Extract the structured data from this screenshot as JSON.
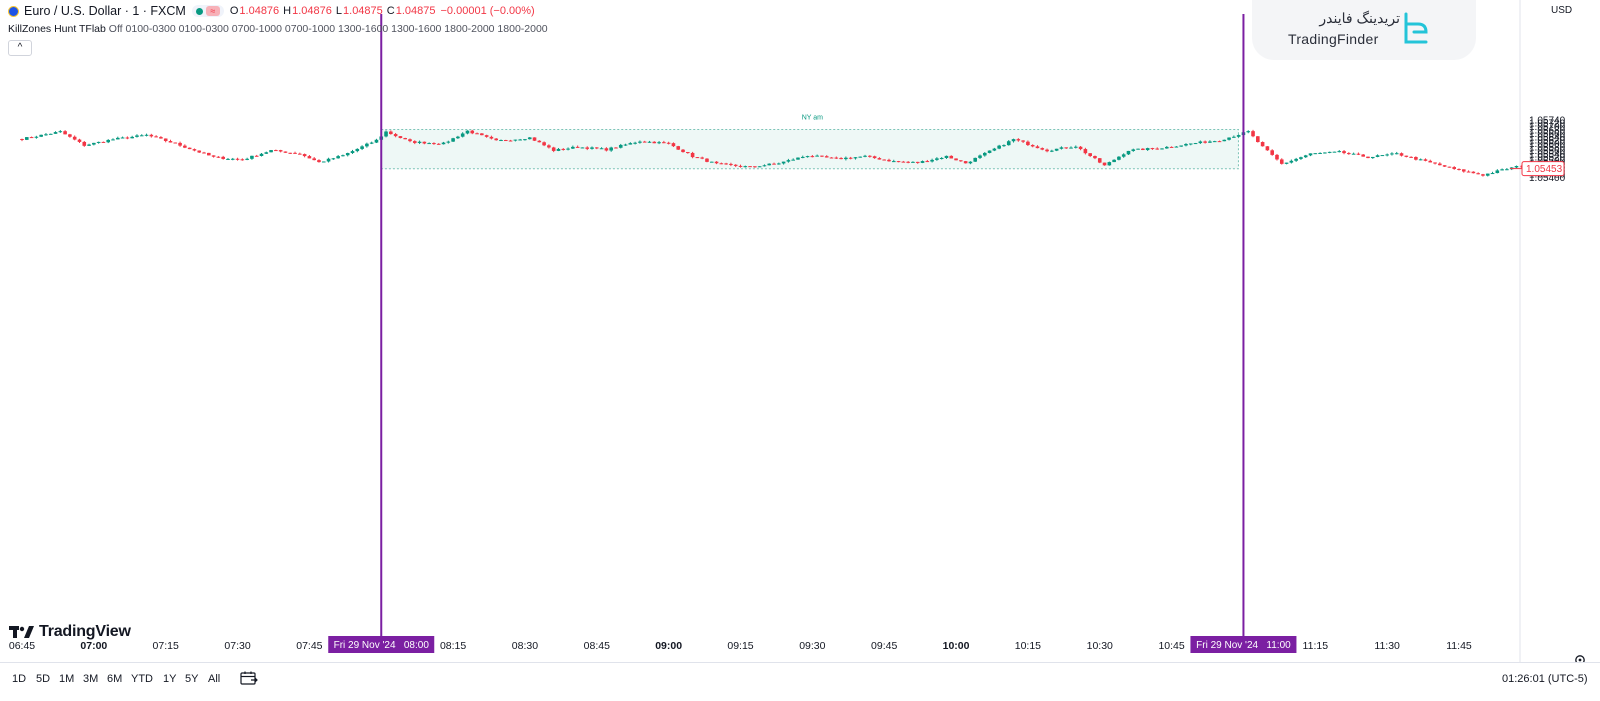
{
  "header": {
    "symbol": "Euro / U.S. Dollar · 1 · FXCM",
    "ohlc": [
      {
        "label": "O",
        "value": "1.04876"
      },
      {
        "label": "H",
        "value": "1.04876"
      },
      {
        "label": "L",
        "value": "1.04875"
      },
      {
        "label": "C",
        "value": "1.04875"
      }
    ],
    "change": "−0.00001 (−0.00%)"
  },
  "indicator": {
    "name": "KillZones Hunt TFlab",
    "params": "Off 0100-0300 0100-0300 0700-1000 0700-1000 1300-1600 1300-1600 1800-2000 1800-2000"
  },
  "brand": {
    "name_fa": "تریدینگ فایندر",
    "name_en": "TradingFinder"
  },
  "tradingview_logo": "TradingView",
  "colors": {
    "up": "#089981",
    "down": "#f23645",
    "session_line": "#7b1fa2",
    "box_fill": "#eef8f6",
    "box_border": "#7cc3b7"
  },
  "price_axis": {
    "currency": "USD",
    "labels": [
      "1.05740",
      "1.05720",
      "1.05700",
      "1.05680",
      "1.05660",
      "1.05640",
      "1.05620",
      "1.05600",
      "1.05580",
      "1.05560",
      "1.05540",
      "1.05520",
      "1.05500",
      "1.05480",
      "1.05460",
      "1.05440",
      "1.05420",
      "1.05400"
    ],
    "current_price": "1.05453"
  },
  "time_axis": {
    "labels": [
      {
        "t": "06:45",
        "bold": false
      },
      {
        "t": "07:00",
        "bold": true
      },
      {
        "t": "07:15",
        "bold": false
      },
      {
        "t": "07:30",
        "bold": false
      },
      {
        "t": "07:45",
        "bold": false
      },
      {
        "t": "08:15",
        "bold": false
      },
      {
        "t": "08:30",
        "bold": false
      },
      {
        "t": "08:45",
        "bold": false
      },
      {
        "t": "09:00",
        "bold": true
      },
      {
        "t": "09:15",
        "bold": false
      },
      {
        "t": "09:30",
        "bold": false
      },
      {
        "t": "09:45",
        "bold": false
      },
      {
        "t": "10:00",
        "bold": true
      },
      {
        "t": "10:15",
        "bold": false
      },
      {
        "t": "10:30",
        "bold": false
      },
      {
        "t": "10:45",
        "bold": false
      },
      {
        "t": "11:15",
        "bold": false
      },
      {
        "t": "11:30",
        "bold": false
      },
      {
        "t": "11:45",
        "bold": false
      }
    ],
    "session_markers": [
      "Fri 29 Nov '24   08:00",
      "Fri 29 Nov '24   11:00"
    ]
  },
  "session_box": {
    "label": "NY am",
    "high": 1.05683,
    "low": 1.05452
  },
  "timeframes": [
    "1D",
    "5D",
    "1M",
    "3M",
    "6M",
    "YTD",
    "1Y",
    "5Y",
    "All"
  ],
  "clock": "01:26:01 (UTC-5)",
  "chart_data": {
    "type": "candlestick",
    "symbol": "EURUSD",
    "interval": "1 minute",
    "x_range": [
      "06:45",
      "11:59"
    ],
    "ylim": [
      1.0539,
      1.0575
    ],
    "anchors": [
      {
        "t": "06:45",
        "p": 1.05628
      },
      {
        "t": "06:53",
        "p": 1.0567
      },
      {
        "t": "06:58",
        "p": 1.0559
      },
      {
        "t": "07:04",
        "p": 1.05625
      },
      {
        "t": "07:11",
        "p": 1.0565
      },
      {
        "t": "07:17",
        "p": 1.056
      },
      {
        "t": "07:25",
        "p": 1.0552
      },
      {
        "t": "07:31",
        "p": 1.05505
      },
      {
        "t": "07:37",
        "p": 1.0556
      },
      {
        "t": "07:43",
        "p": 1.0554
      },
      {
        "t": "07:47",
        "p": 1.0549
      },
      {
        "t": "07:52",
        "p": 1.0553
      },
      {
        "t": "07:59",
        "p": 1.0562
      },
      {
        "t": "08:01",
        "p": 1.0567
      },
      {
        "t": "08:06",
        "p": 1.0561
      },
      {
        "t": "08:13",
        "p": 1.056
      },
      {
        "t": "08:18",
        "p": 1.05675
      },
      {
        "t": "08:24",
        "p": 1.05615
      },
      {
        "t": "08:31",
        "p": 1.05635
      },
      {
        "t": "08:36",
        "p": 1.0556
      },
      {
        "t": "08:41",
        "p": 1.0558
      },
      {
        "t": "08:47",
        "p": 1.05565
      },
      {
        "t": "08:54",
        "p": 1.05615
      },
      {
        "t": "09:00",
        "p": 1.056
      },
      {
        "t": "09:05",
        "p": 1.05525
      },
      {
        "t": "09:10",
        "p": 1.0548
      },
      {
        "t": "09:17",
        "p": 1.05462
      },
      {
        "t": "09:23",
        "p": 1.05485
      },
      {
        "t": "09:29",
        "p": 1.0553
      },
      {
        "t": "09:35",
        "p": 1.0551
      },
      {
        "t": "09:41",
        "p": 1.05525
      },
      {
        "t": "09:47",
        "p": 1.05495
      },
      {
        "t": "09:52",
        "p": 1.05488
      },
      {
        "t": "09:58",
        "p": 1.05525
      },
      {
        "t": "10:02",
        "p": 1.05485
      },
      {
        "t": "10:06",
        "p": 1.0554
      },
      {
        "t": "10:12",
        "p": 1.05625
      },
      {
        "t": "10:19",
        "p": 1.0556
      },
      {
        "t": "10:25",
        "p": 1.05585
      },
      {
        "t": "10:31",
        "p": 1.0547
      },
      {
        "t": "10:36",
        "p": 1.0556
      },
      {
        "t": "10:43",
        "p": 1.05575
      },
      {
        "t": "10:49",
        "p": 1.056
      },
      {
        "t": "10:55",
        "p": 1.0562
      },
      {
        "t": "11:01",
        "p": 1.0567
      },
      {
        "t": "11:04",
        "p": 1.0558
      },
      {
        "t": "11:08",
        "p": 1.0548
      },
      {
        "t": "11:14",
        "p": 1.0554
      },
      {
        "t": "11:20",
        "p": 1.0555
      },
      {
        "t": "11:26",
        "p": 1.0552
      },
      {
        "t": "11:32",
        "p": 1.0554
      },
      {
        "t": "11:38",
        "p": 1.05495
      },
      {
        "t": "11:44",
        "p": 1.0545
      },
      {
        "t": "11:50",
        "p": 1.05415
      },
      {
        "t": "11:54",
        "p": 1.05445
      },
      {
        "t": "11:58",
        "p": 1.0547
      },
      {
        "t": "11:59",
        "p": 1.05453
      }
    ]
  }
}
